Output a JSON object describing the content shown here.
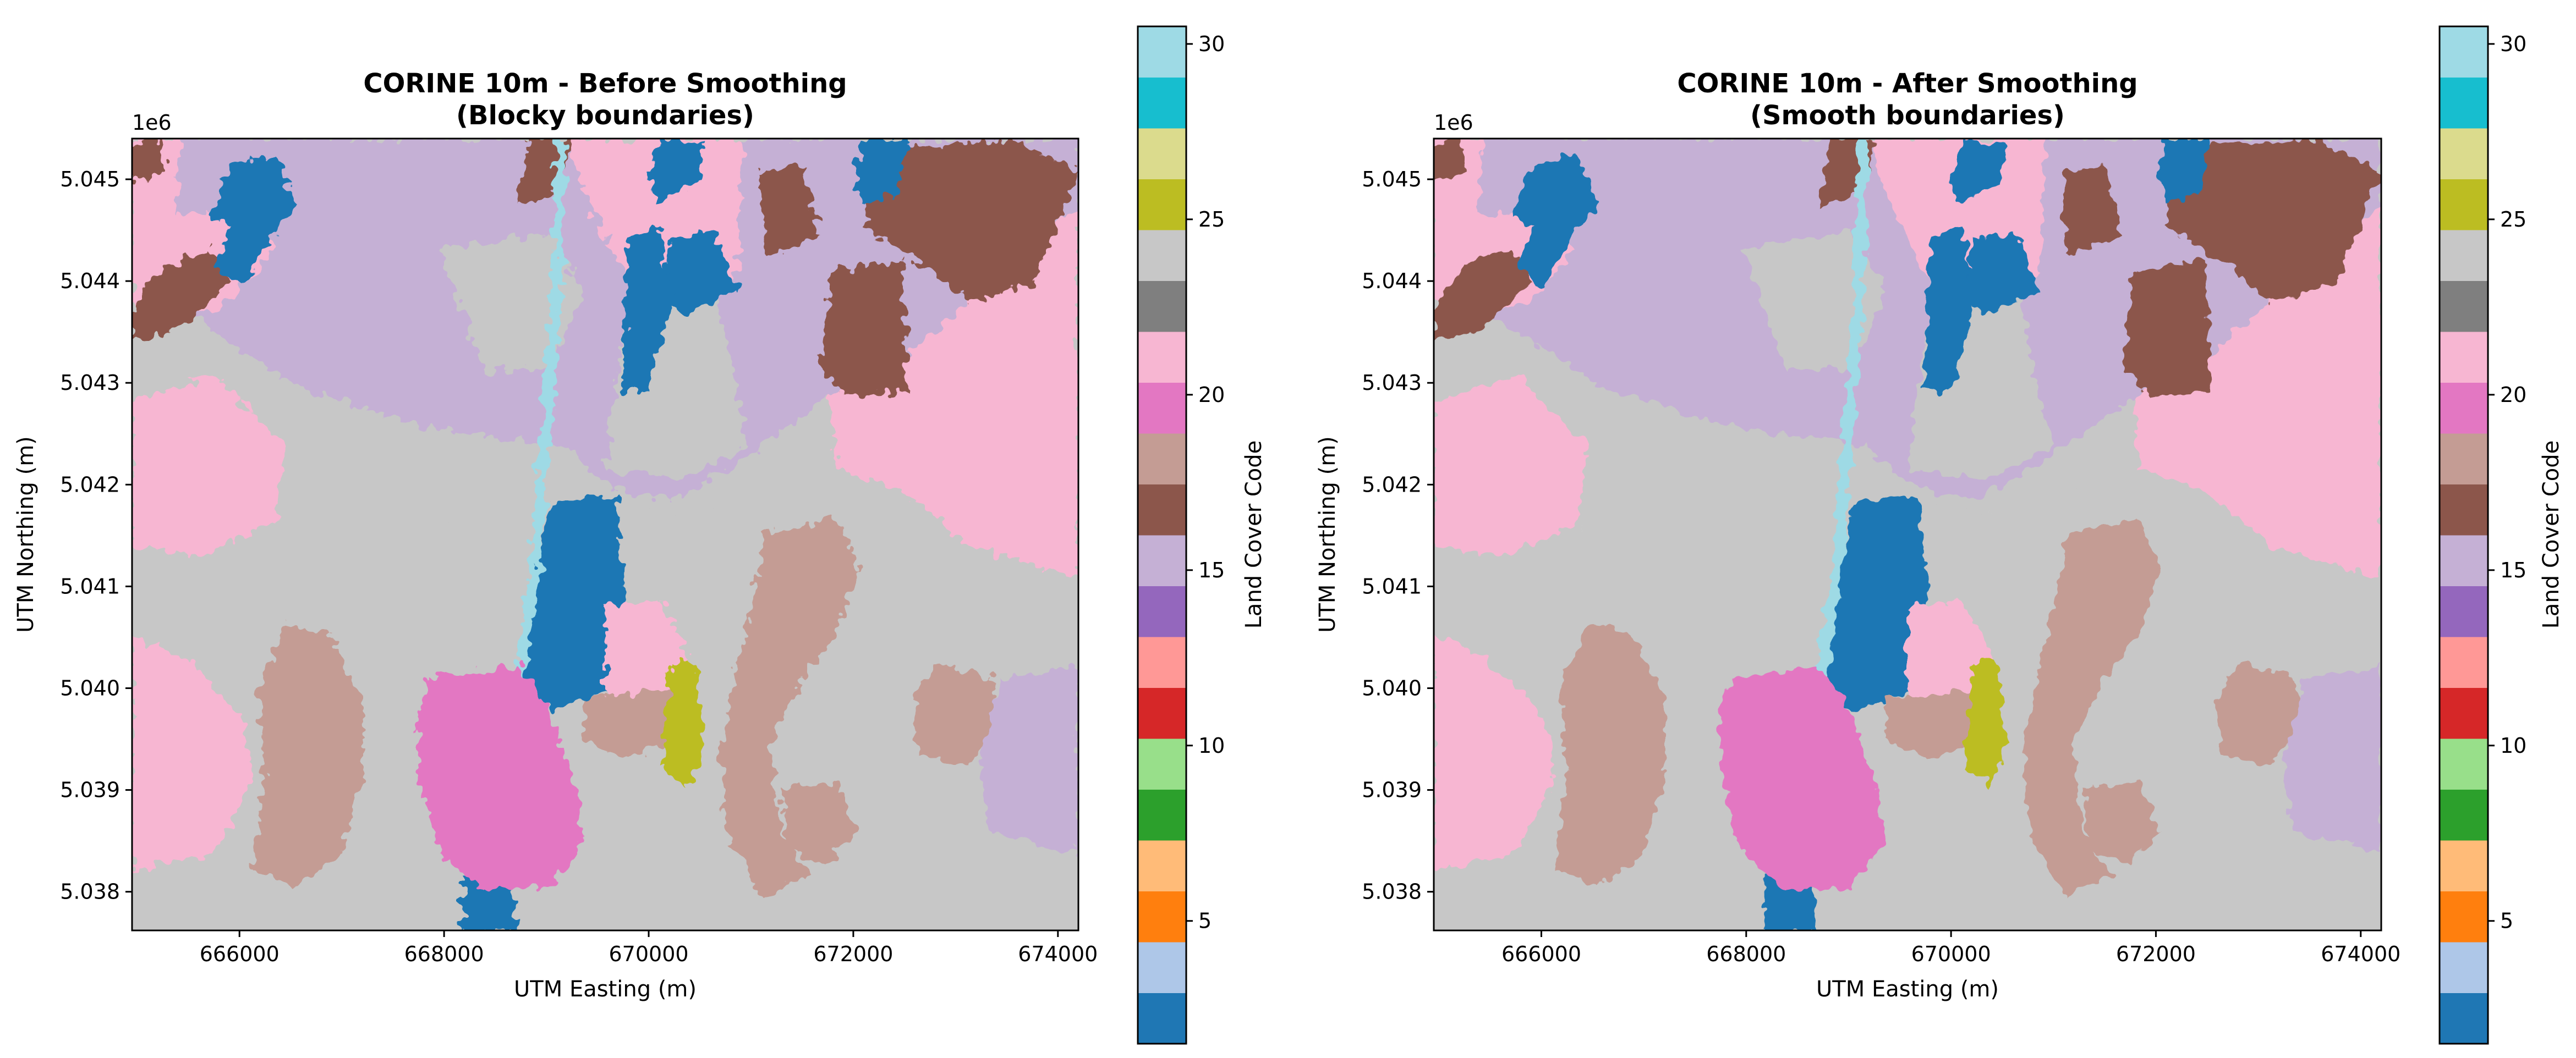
{
  "figure": {
    "panels": [
      {
        "title_line1": "CORINE 10m - Before Smoothing",
        "title_line2": "(Blocky boundaries)",
        "offset_label": "1e6",
        "xlabel": "UTM Easting (m)",
        "ylabel": "UTM Northing (m)",
        "colorbar_label": "Land Cover Code",
        "style": "blocky"
      },
      {
        "title_line1": "CORINE 10m - After Smoothing",
        "title_line2": "(Smooth boundaries)",
        "offset_label": "1e6",
        "xlabel": "UTM Easting (m)",
        "ylabel": "UTM Northing (m)",
        "colorbar_label": "Land Cover Code",
        "style": "smooth"
      }
    ]
  },
  "chart_data": {
    "type": "heatmap",
    "x_ticks": [
      "666000",
      "668000",
      "670000",
      "672000",
      "674000"
    ],
    "y_ticks": [
      "5.038",
      "5.039",
      "5.040",
      "5.041",
      "5.042",
      "5.043",
      "5.044",
      "5.045"
    ],
    "x_tick_values": [
      666000,
      668000,
      670000,
      672000,
      674000
    ],
    "y_tick_values": [
      5.038,
      5.039,
      5.04,
      5.041,
      5.042,
      5.043,
      5.044,
      5.045
    ],
    "xlim": [
      664950,
      674200
    ],
    "ylim": [
      5.03762,
      5.0454
    ],
    "colorbar_ticks": [
      "5",
      "10",
      "15",
      "20",
      "25",
      "30"
    ],
    "colorbar_tick_values": [
      5,
      10,
      15,
      20,
      25,
      30
    ],
    "colorbar_range": [
      1.5,
      30.5
    ],
    "colormap": "tab20",
    "colorbar_colors": [
      "#1f77b4",
      "#aec7e8",
      "#ff7f0e",
      "#ffbb78",
      "#2ca02c",
      "#98df8a",
      "#d62728",
      "#ff9896",
      "#9467bd",
      "#c5b0d5",
      "#8c564b",
      "#c49c94",
      "#e377c2",
      "#f7b6d2",
      "#7f7f7f",
      "#c7c7c7",
      "#bcbd22",
      "#dbdb8d",
      "#17becf",
      "#9edae5"
    ],
    "land_cover_colors": {
      "pink_urban": "#f7b6d2",
      "grey_agri": "#c7c7c7",
      "lavender": "#c5b0d5",
      "brown": "#8c564b",
      "tan": "#c49c94",
      "magenta": "#e377c2",
      "blue_water": "#1f77b4",
      "olive": "#bcbd22",
      "light_cyan": "#9edae5"
    }
  }
}
